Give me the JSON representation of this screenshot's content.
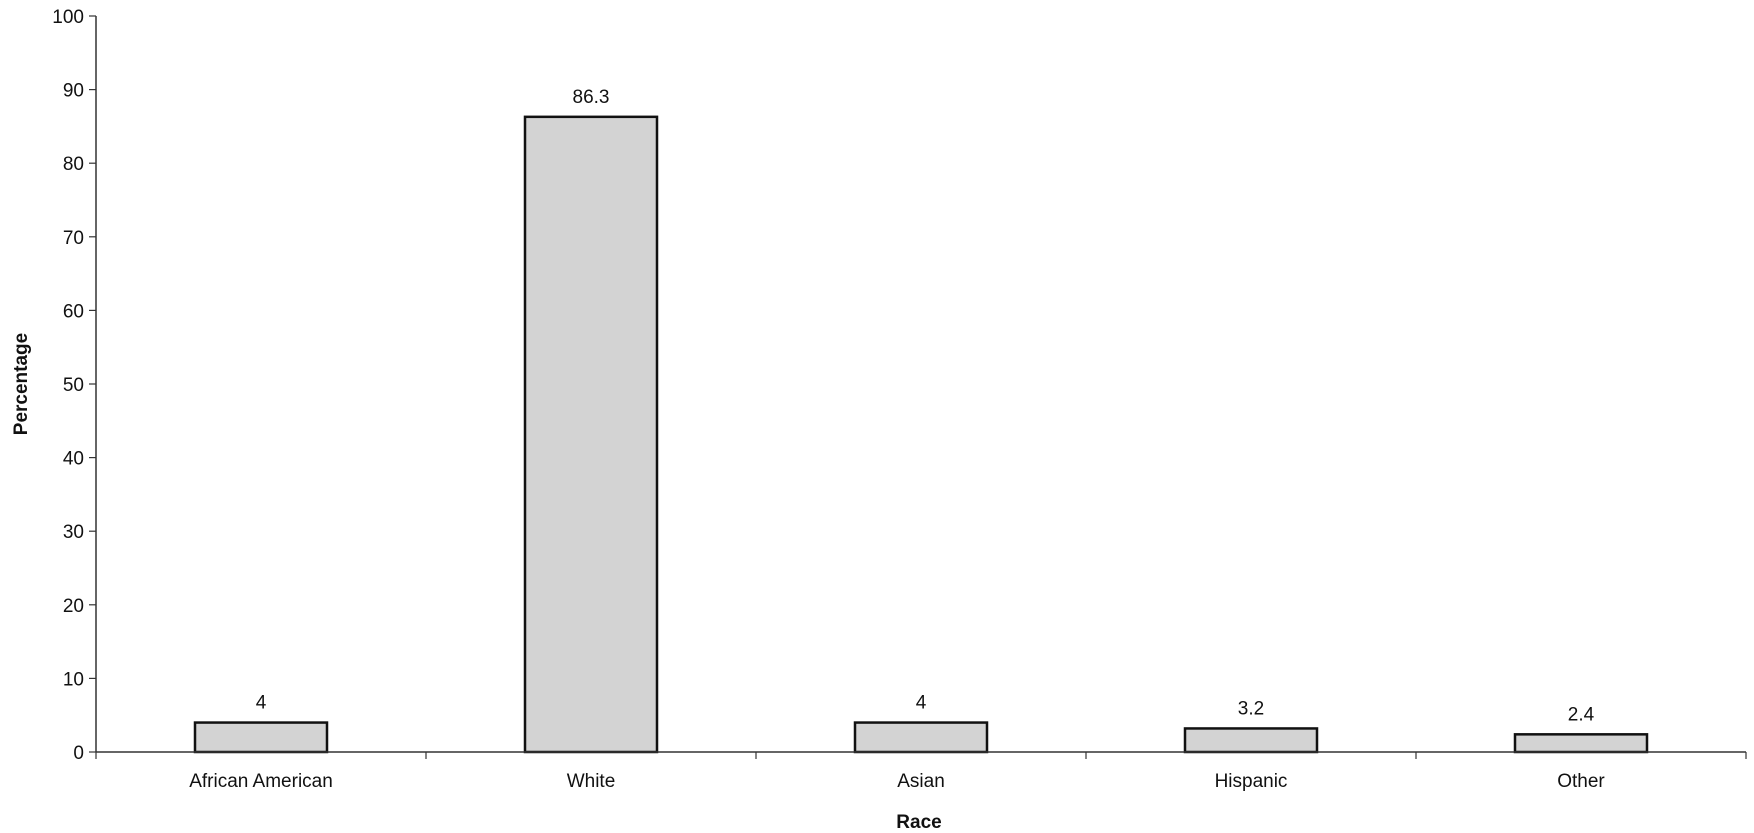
{
  "chart_data": {
    "type": "bar",
    "categories": [
      "African American",
      "White",
      "Asian",
      "Hispanic",
      "Other"
    ],
    "values": [
      4,
      86.3,
      4,
      3.2,
      2.4
    ],
    "data_labels": [
      "4",
      "86.3",
      "4",
      "3.2",
      "2.4"
    ],
    "xlabel": "Race",
    "ylabel": "Percentage",
    "ylim": [
      0,
      100
    ],
    "yticks": [
      0,
      10,
      20,
      30,
      40,
      50,
      60,
      70,
      80,
      90,
      100
    ],
    "grid": false,
    "legend": "none",
    "bar_color": "#d3d3d3",
    "bar_edge_color": "#111111"
  }
}
